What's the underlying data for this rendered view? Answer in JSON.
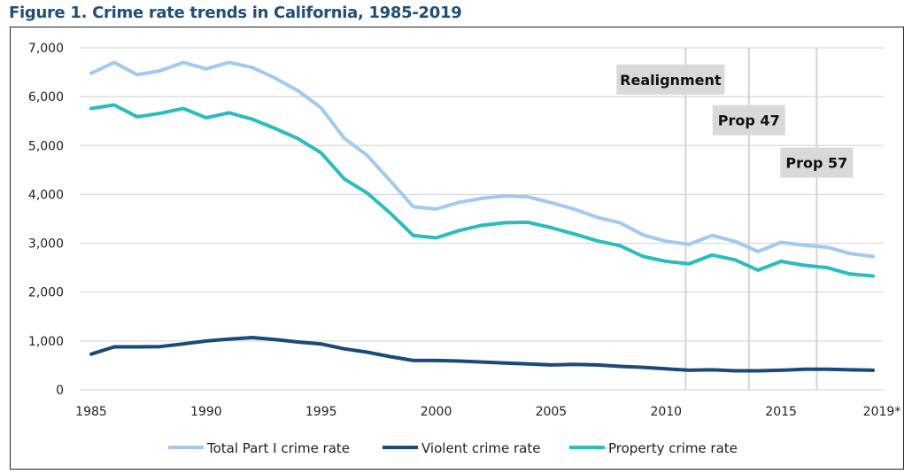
{
  "chart_data": {
    "type": "line",
    "title": "Figure 1. Crime rate trends in California, 1985-2019",
    "xlabel": "",
    "ylabel": "",
    "ylim": [
      0,
      7000
    ],
    "xlim": [
      1985,
      2019
    ],
    "grid": true,
    "yticks": [
      "0",
      "1,000",
      "2,000",
      "3,000",
      "4,000",
      "5,000",
      "6,000",
      "7,000"
    ],
    "ytick_values": [
      0,
      1000,
      2000,
      3000,
      4000,
      5000,
      6000,
      7000
    ],
    "xticks": [
      "1985",
      "1990",
      "1995",
      "2000",
      "2005",
      "2010",
      "2015",
      "2019*"
    ],
    "xtick_values": [
      1985,
      1990,
      1995,
      2000,
      2005,
      2010,
      2015,
      2019
    ],
    "x": [
      1985,
      1986,
      1987,
      1988,
      1989,
      1990,
      1991,
      1992,
      1993,
      1994,
      1995,
      1996,
      1997,
      1998,
      1999,
      2000,
      2001,
      2002,
      2003,
      2004,
      2005,
      2006,
      2007,
      2008,
      2009,
      2010,
      2011,
      2012,
      2013,
      2014,
      2015,
      2016,
      2017,
      2018,
      2019
    ],
    "series": [
      {
        "name": "Total Part I crime rate",
        "color": "#a3c9f1",
        "values": [
          6480,
          6700,
          6450,
          6530,
          6700,
          6570,
          6700,
          6600,
          6380,
          6120,
          5770,
          5150,
          4800,
          4280,
          3750,
          3700,
          3840,
          3920,
          3970,
          3950,
          3830,
          3700,
          3530,
          3420,
          3170,
          3040,
          2980,
          3160,
          3040,
          2830,
          3020,
          2960,
          2920,
          2790,
          2730
        ]
      },
      {
        "name": "Violent crime rate",
        "color": "#1b4a78",
        "values": [
          730,
          880,
          880,
          885,
          940,
          1000,
          1040,
          1070,
          1030,
          980,
          940,
          840,
          770,
          680,
          600,
          600,
          590,
          570,
          550,
          530,
          510,
          520,
          510,
          480,
          460,
          430,
          400,
          410,
          390,
          390,
          400,
          420,
          420,
          410,
          400
        ]
      },
      {
        "name": "Property crime rate",
        "color": "#2bbcc0",
        "values": [
          5760,
          5830,
          5590,
          5660,
          5760,
          5570,
          5670,
          5540,
          5350,
          5140,
          4850,
          4320,
          4030,
          3620,
          3160,
          3110,
          3260,
          3370,
          3420,
          3430,
          3320,
          3190,
          3050,
          2950,
          2730,
          2630,
          2580,
          2760,
          2660,
          2450,
          2630,
          2550,
          2500,
          2370,
          2330
        ]
      }
    ],
    "annotations": [
      {
        "label": "Realignment",
        "x": 2010.85,
        "level": 6350
      },
      {
        "label": "Prop 47",
        "x": 2013.6,
        "level": 5520
      },
      {
        "label": "Prop 57",
        "x": 2016.55,
        "level": 4650
      }
    ],
    "legend_position": "bottom",
    "legend_order": [
      0,
      1,
      2
    ]
  }
}
